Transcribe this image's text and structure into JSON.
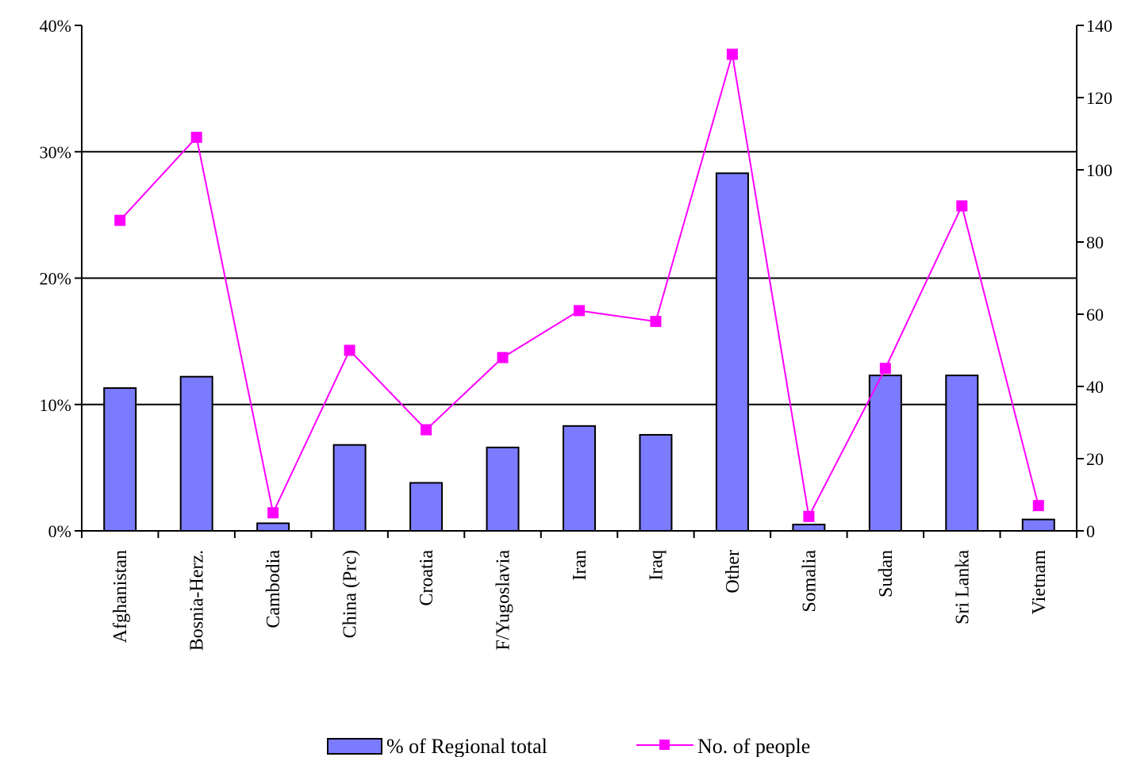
{
  "chart_data": {
    "type": "bar",
    "categories": [
      "Afghanistan",
      "Bosnia-Herz.",
      "Cambodia",
      "China (Prc)",
      "Croatia",
      "F/Yugoslavia",
      "Iran",
      "Iraq",
      "Other",
      "Somalia",
      "Sudan",
      "Sri Lanka",
      "Vietnam"
    ],
    "series": [
      {
        "name": "% of Regional total",
        "kind": "bar",
        "axis": "left",
        "color": "#7B7BFF",
        "values": [
          11.3,
          12.2,
          0.6,
          6.8,
          3.8,
          6.6,
          8.3,
          7.6,
          28.3,
          0.5,
          12.3,
          12.3,
          0.9
        ]
      },
      {
        "name": "No. of people",
        "kind": "line",
        "axis": "right",
        "color": "#FF00FF",
        "values": [
          86,
          109,
          5,
          50,
          28,
          48,
          61,
          58,
          132,
          4,
          45,
          90,
          7
        ]
      }
    ],
    "left_axis": {
      "ylim": [
        0,
        40
      ],
      "ticks": [
        0,
        10,
        20,
        30,
        40
      ],
      "tick_labels": [
        "0%",
        "10%",
        "20%",
        "30%",
        "40%"
      ]
    },
    "right_axis": {
      "ylim": [
        0,
        140
      ],
      "ticks": [
        0,
        20,
        40,
        60,
        80,
        100,
        120,
        140
      ],
      "tick_labels": [
        "0",
        "20",
        "40",
        "60",
        "80",
        "100",
        "120",
        "140"
      ]
    },
    "grid": {
      "horizontal": true,
      "at": [
        10,
        20,
        30
      ]
    },
    "legend": {
      "placement": "bottom",
      "items": [
        {
          "label": "% of Regional total",
          "marker": "bar"
        },
        {
          "label": "No. of people",
          "marker": "line-square"
        }
      ]
    }
  }
}
